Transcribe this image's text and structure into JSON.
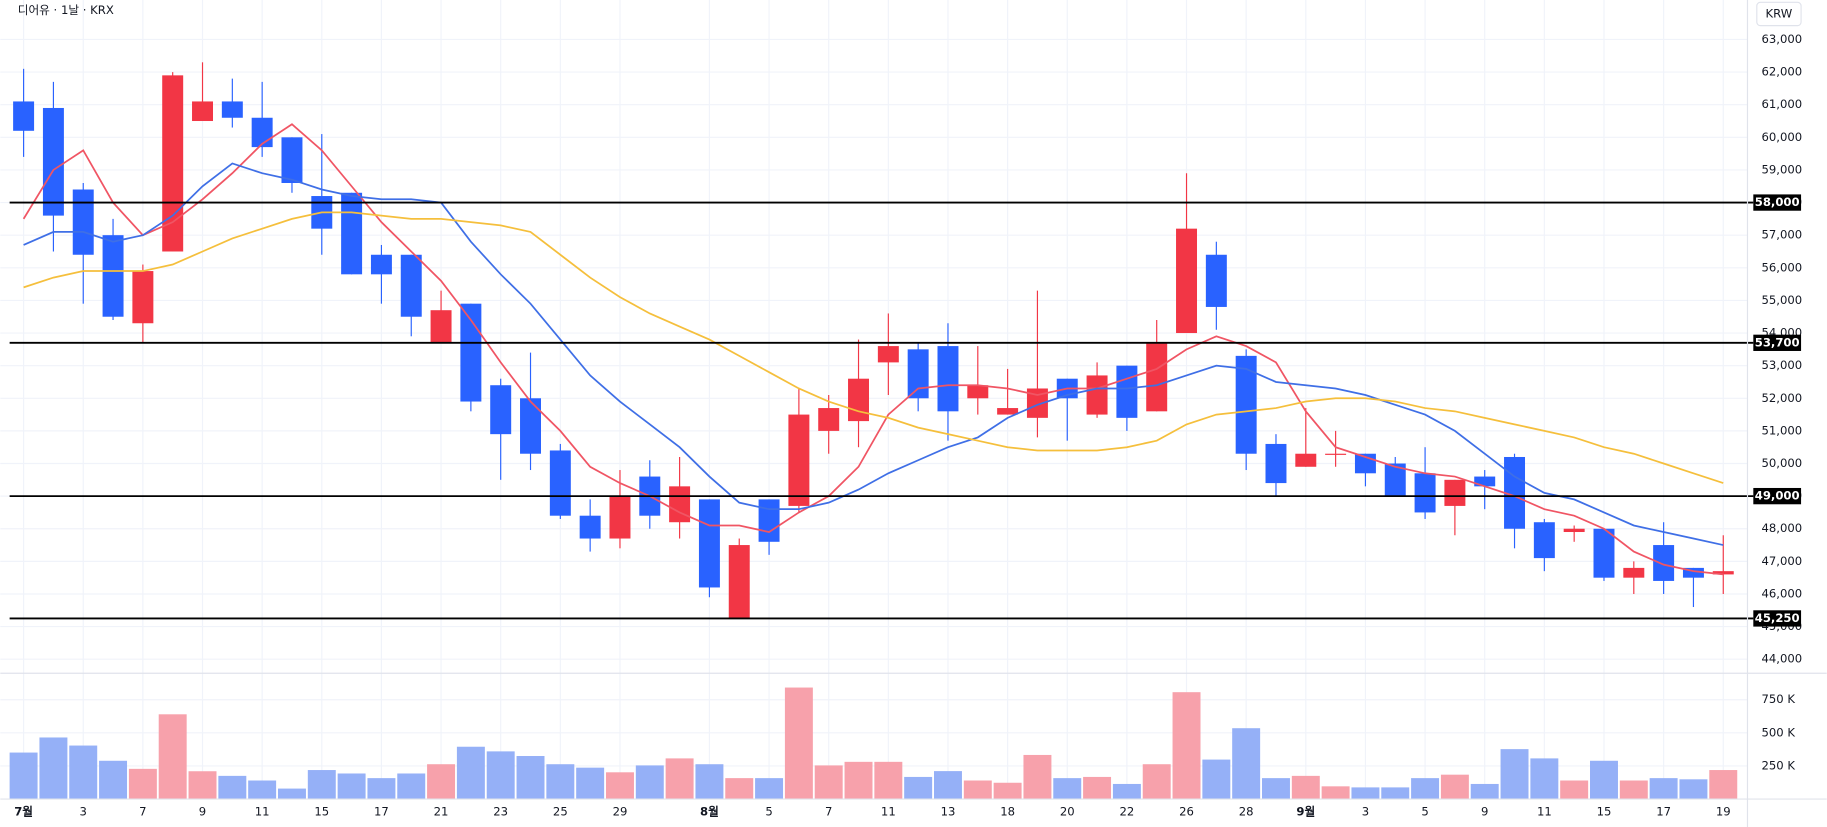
{
  "chart_data": {
    "type": "candlestick",
    "title": "디어유 · 1날 · KRX",
    "currency": "KRW",
    "categories": [
      "7월",
      null,
      "3",
      null,
      "7",
      null,
      "9",
      null,
      "11",
      null,
      "15",
      null,
      "17",
      null,
      "21",
      null,
      "23",
      null,
      "25",
      null,
      "29",
      null,
      null,
      "8월",
      null,
      "5",
      null,
      "7",
      null,
      "11",
      null,
      "13",
      null,
      "18",
      null,
      "20",
      null,
      "22",
      null,
      "26",
      null,
      "28",
      null,
      "9월",
      null,
      "3",
      null,
      "5",
      null,
      "9",
      null,
      "11",
      null,
      "15",
      null,
      "17",
      null,
      "19"
    ],
    "open": [
      61100,
      60900,
      58400,
      57000,
      54300,
      56500,
      60500,
      61100,
      60600,
      60000,
      58200,
      58300,
      56400,
      56400,
      53700,
      54900,
      52400,
      52000,
      50400,
      48400,
      47700,
      49600,
      48200,
      48900,
      45250,
      48900,
      48700,
      51000,
      51300,
      53100,
      53500,
      53600,
      52000,
      51500,
      51400,
      52600,
      51500,
      53000,
      51600,
      54000,
      56400,
      53300,
      50600,
      49900,
      50300,
      50300,
      50000,
      49700,
      48700,
      49600,
      50200,
      48200,
      47900,
      48000,
      46500,
      47500,
      46800,
      46600
    ],
    "high": [
      62100,
      61700,
      58600,
      57500,
      56100,
      62000,
      62300,
      61800,
      61700,
      60000,
      60100,
      58300,
      56700,
      56400,
      55300,
      54900,
      52600,
      53400,
      50600,
      48900,
      49800,
      50100,
      50200,
      48900,
      47700,
      48900,
      52300,
      52100,
      53800,
      54600,
      53700,
      54300,
      53600,
      52900,
      55300,
      52600,
      53100,
      53000,
      54400,
      58900,
      56800,
      53500,
      50900,
      51700,
      51000,
      50300,
      50200,
      50500,
      49500,
      49800,
      50300,
      48300,
      48100,
      48000,
      47000,
      48200,
      46800,
      47800
    ],
    "low": [
      59400,
      56500,
      54900,
      54400,
      53700,
      56500,
      60500,
      60300,
      59400,
      58300,
      56400,
      55800,
      54900,
      53900,
      53700,
      51600,
      49500,
      49800,
      48300,
      47300,
      47400,
      48000,
      47700,
      45900,
      45250,
      47200,
      48500,
      50300,
      50500,
      52100,
      51600,
      50700,
      51500,
      51500,
      50800,
      50700,
      51400,
      51000,
      51600,
      54000,
      54100,
      49800,
      49000,
      49900,
      49900,
      49300,
      49000,
      48300,
      47800,
      48600,
      47400,
      46700,
      47600,
      46400,
      46000,
      46000,
      45600,
      46000
    ],
    "close": [
      60200,
      57600,
      56400,
      54500,
      55900,
      61900,
      61100,
      60600,
      59700,
      58600,
      57200,
      55800,
      55800,
      54500,
      54700,
      51900,
      50900,
      50300,
      48400,
      47700,
      49000,
      48400,
      49300,
      46200,
      47500,
      47600,
      51500,
      51700,
      52600,
      53600,
      52000,
      51600,
      52400,
      51700,
      52300,
      52000,
      52700,
      51400,
      53700,
      57200,
      54800,
      50300,
      49400,
      50300,
      50300,
      49700,
      49000,
      48500,
      49500,
      49300,
      48000,
      47100,
      48000,
      46500,
      46800,
      46400,
      46500,
      46700
    ],
    "up_color": "#f23645",
    "down_color": "#2962ff",
    "ma_series": [
      {
        "color": "#f05564",
        "values": [
          57500,
          59000,
          59600,
          58000,
          57000,
          57400,
          58100,
          58900,
          59800,
          60400,
          59600,
          58500,
          57400,
          56500,
          55600,
          54400,
          53100,
          51900,
          51000,
          49900,
          49400,
          49000,
          48500,
          48100,
          48100,
          47900,
          48500,
          49000,
          49900,
          51500,
          52300,
          52400,
          52400,
          52300,
          52100,
          52300,
          52300,
          52600,
          52900,
          53500,
          53900,
          53600,
          53100,
          51600,
          50500,
          50200,
          49900,
          49700,
          49600,
          49300,
          49000,
          48600,
          48400,
          48000,
          47300,
          46900,
          46700,
          46600
        ]
      },
      {
        "color": "#3f6fe6",
        "values": [
          56700,
          57100,
          57100,
          56800,
          57000,
          57600,
          58500,
          59200,
          58900,
          58700,
          58400,
          58200,
          58100,
          58100,
          58000,
          56800,
          55800,
          54900,
          53800,
          52700,
          51900,
          51200,
          50500,
          49600,
          48800,
          48600,
          48600,
          48800,
          49200,
          49700,
          50100,
          50500,
          50800,
          51400,
          51800,
          52100,
          52300,
          52300,
          52400,
          52700,
          53000,
          52900,
          52500,
          52400,
          52300,
          52100,
          51800,
          51500,
          51000,
          50300,
          49600,
          49100,
          48900,
          48500,
          48100,
          47900,
          47700,
          47500
        ]
      },
      {
        "color": "#f5bf3c",
        "values": [
          55400,
          55700,
          55900,
          55900,
          55900,
          56100,
          56500,
          56900,
          57200,
          57500,
          57700,
          57700,
          57600,
          57500,
          57500,
          57400,
          57300,
          57100,
          56400,
          55700,
          55100,
          54600,
          54200,
          53800,
          53300,
          52800,
          52300,
          51900,
          51600,
          51400,
          51100,
          50900,
          50700,
          50500,
          50400,
          50400,
          50400,
          50500,
          50700,
          51200,
          51500,
          51600,
          51700,
          51900,
          52000,
          52000,
          51900,
          51700,
          51600,
          51400,
          51200,
          51000,
          50800,
          50500,
          50300,
          50000,
          49700,
          49400
        ]
      }
    ],
    "levels": [
      {
        "value": 58000,
        "label": "58,000"
      },
      {
        "value": 53700,
        "label": "53,700"
      },
      {
        "value": 49000,
        "label": "49,000"
      },
      {
        "value": 45250,
        "label": "45,250"
      }
    ],
    "ylim": [
      43570,
      64210
    ],
    "yticks": [
      {
        "value": 44000,
        "label": "44,000"
      },
      {
        "value": 45000,
        "label": "45,000"
      },
      {
        "value": 46000,
        "label": "46,000"
      },
      {
        "value": 47000,
        "label": "47,000"
      },
      {
        "value": 48000,
        "label": "48,000"
      },
      {
        "value": 49000,
        "label": "49,000"
      },
      {
        "value": 50000,
        "label": "50,000"
      },
      {
        "value": 51000,
        "label": "51,000"
      },
      {
        "value": 52000,
        "label": "52,000"
      },
      {
        "value": 53000,
        "label": "53,000"
      },
      {
        "value": 54000,
        "label": "54,000"
      },
      {
        "value": 55000,
        "label": "55,000"
      },
      {
        "value": 56000,
        "label": "56,000"
      },
      {
        "value": 57000,
        "label": "57,000"
      },
      {
        "value": 58000,
        "label": "58,000"
      },
      {
        "value": 59000,
        "label": "59,000"
      },
      {
        "value": 60000,
        "label": "60,000"
      },
      {
        "value": 61000,
        "label": "61,000"
      },
      {
        "value": 62000,
        "label": "62,000"
      },
      {
        "value": 63000,
        "label": "63,000"
      }
    ],
    "volume": [
      351000,
      465000,
      404000,
      289000,
      228000,
      640000,
      210000,
      175000,
      140000,
      79000,
      219000,
      193000,
      158000,
      193000,
      263000,
      395000,
      360000,
      325000,
      263000,
      237000,
      202000,
      254000,
      307000,
      263000,
      158000,
      158000,
      842000,
      254000,
      281000,
      281000,
      167000,
      211000,
      140000,
      123000,
      333000,
      158000,
      167000,
      114000,
      263000,
      807000,
      298000,
      535000,
      158000,
      175000,
      96000,
      88000,
      88000,
      158000,
      184000,
      114000,
      377000,
      307000,
      140000,
      289000,
      140000,
      158000,
      149000,
      219000
    ],
    "volume_up_color": "#f7a1ab",
    "volume_down_color": "#95b0f7",
    "volume_ylim": [
      0,
      950000
    ],
    "volume_yticks": [
      {
        "value": 250000,
        "label": "250 K"
      },
      {
        "value": 500000,
        "label": "500 K"
      },
      {
        "value": 750000,
        "label": "750 K"
      }
    ],
    "grid": true
  }
}
